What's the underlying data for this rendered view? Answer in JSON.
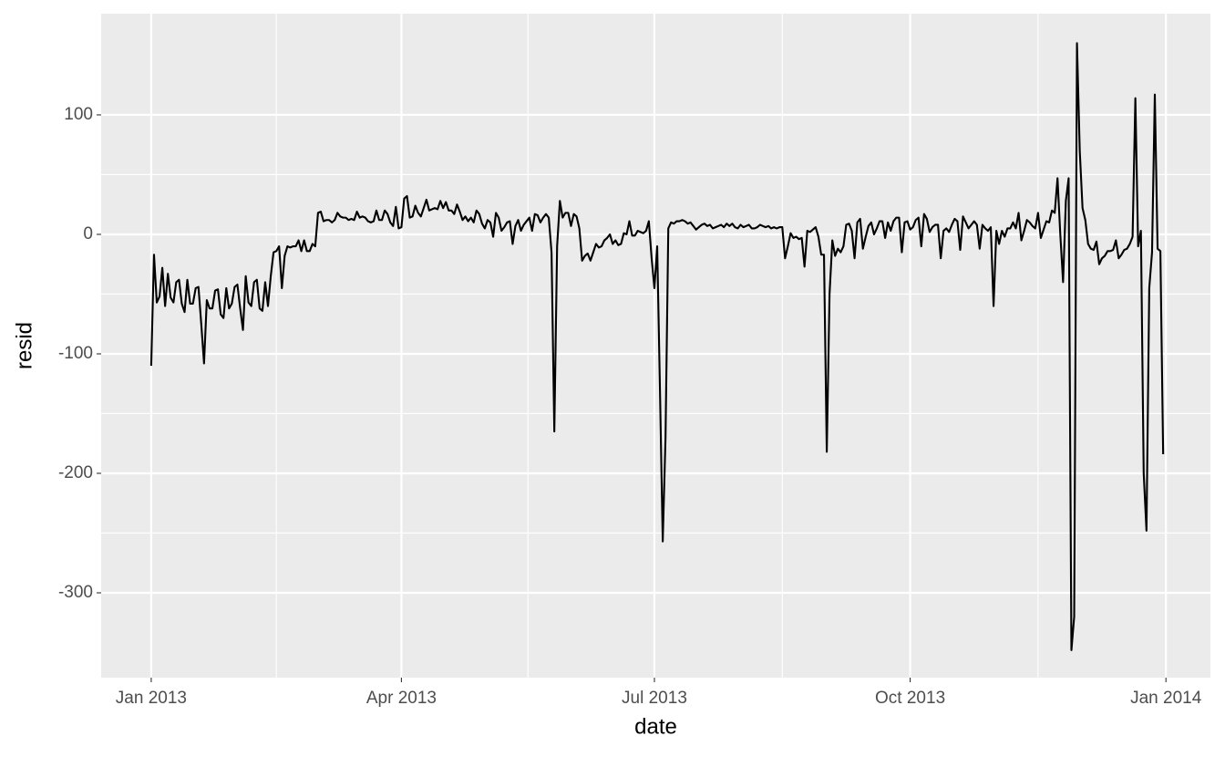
{
  "chart_data": {
    "type": "line",
    "x_label": "date",
    "y_label": "resid",
    "x": [
      0,
      1,
      2,
      3,
      4,
      5,
      6,
      7,
      8,
      9,
      10,
      11,
      12,
      13,
      14,
      15,
      16,
      17,
      18,
      19,
      20,
      21,
      22,
      23,
      24,
      25,
      26,
      27,
      28,
      29,
      30,
      31,
      32,
      33,
      34,
      35,
      36,
      37,
      38,
      39,
      40,
      41,
      42,
      43,
      44,
      45,
      46,
      47,
      48,
      49,
      50,
      51,
      52,
      53,
      54,
      55,
      56,
      57,
      58,
      59,
      60,
      61,
      62,
      63,
      64,
      65,
      66,
      67,
      68,
      69,
      70,
      71,
      72,
      73,
      74,
      75,
      76,
      77,
      78,
      79,
      80,
      81,
      82,
      83,
      84,
      85,
      86,
      87,
      88,
      89,
      90,
      91,
      92,
      93,
      94,
      95,
      96,
      97,
      98,
      99,
      100,
      101,
      102,
      103,
      104,
      105,
      106,
      107,
      108,
      109,
      110,
      111,
      112,
      113,
      114,
      115,
      116,
      117,
      118,
      119,
      120,
      121,
      122,
      123,
      124,
      125,
      126,
      127,
      128,
      129,
      130,
      131,
      132,
      133,
      134,
      135,
      136,
      137,
      138,
      139,
      140,
      141,
      142,
      143,
      144,
      145,
      146,
      147,
      148,
      149,
      150,
      151,
      152,
      153,
      154,
      155,
      156,
      157,
      158,
      159,
      160,
      161,
      162,
      163,
      164,
      165,
      166,
      167,
      168,
      169,
      170,
      171,
      172,
      173,
      174,
      175,
      176,
      177,
      178,
      179,
      180,
      181,
      182,
      183,
      184,
      185,
      186,
      187,
      188,
      189,
      190,
      191,
      192,
      193,
      194,
      195,
      196,
      197,
      198,
      199,
      200,
      201,
      202,
      203,
      204,
      205,
      206,
      207,
      208,
      209,
      210,
      211,
      212,
      213,
      214,
      215,
      216,
      217,
      218,
      219,
      220,
      221,
      222,
      223,
      224,
      225,
      226,
      227,
      228,
      229,
      230,
      231,
      232,
      233,
      234,
      235,
      236,
      237,
      238,
      239,
      240,
      241,
      242,
      243,
      244,
      245,
      246,
      247,
      248,
      249,
      250,
      251,
      252,
      253,
      254,
      255,
      256,
      257,
      258,
      259,
      260,
      261,
      262,
      263,
      264,
      265,
      266,
      267,
      268,
      269,
      270,
      271,
      272,
      273,
      274,
      275,
      276,
      277,
      278,
      279,
      280,
      281,
      282,
      283,
      284,
      285,
      286,
      287,
      288,
      289,
      290,
      291,
      292,
      293,
      294,
      295,
      296,
      297,
      298,
      299,
      300,
      301,
      302,
      303,
      304,
      305,
      306,
      307,
      308,
      309,
      310,
      311,
      312,
      313,
      314,
      315,
      316,
      317,
      318,
      319,
      320,
      321,
      322,
      323,
      324,
      325,
      326,
      327,
      328,
      329,
      330,
      331,
      332,
      333,
      334,
      335,
      336,
      337,
      338,
      339,
      340,
      341,
      342,
      343,
      344,
      345,
      346,
      347,
      348,
      349,
      350,
      351,
      352,
      353,
      354,
      355,
      356,
      357,
      358,
      359,
      360,
      361,
      362,
      363,
      364
    ],
    "series": [
      {
        "color": "#000000",
        "values": [
          -110,
          -17,
          -57,
          -52,
          -28,
          -60,
          -33,
          -53,
          -57,
          -40,
          -38,
          -58,
          -65,
          -38,
          -58,
          -58,
          -45,
          -44,
          -75,
          -108,
          -55,
          -62,
          -62,
          -47,
          -46,
          -67,
          -70,
          -45,
          -62,
          -58,
          -44,
          -42,
          -62,
          -80,
          -35,
          -57,
          -60,
          -40,
          -38,
          -62,
          -64,
          -40,
          -60,
          -35,
          -15,
          -14,
          -10,
          -45,
          -18,
          -10,
          -11,
          -10,
          -10,
          -5,
          -14,
          -5,
          -14,
          -14,
          -8,
          -10,
          18,
          19,
          11,
          12,
          12,
          10,
          12,
          18,
          15,
          14,
          14,
          12,
          13,
          12,
          19,
          14,
          15,
          14,
          11,
          10,
          11,
          20,
          12,
          12,
          20,
          17,
          10,
          7,
          23,
          5,
          6,
          30,
          32,
          14,
          15,
          24,
          18,
          15,
          22,
          29,
          20,
          21,
          22,
          21,
          28,
          22,
          27,
          20,
          20,
          17,
          25,
          19,
          12,
          15,
          11,
          14,
          10,
          20,
          17,
          9,
          5,
          12,
          10,
          -2,
          18,
          14,
          3,
          6,
          10,
          11,
          -8,
          7,
          12,
          3,
          8,
          11,
          14,
          3,
          17,
          16,
          10,
          14,
          17,
          14,
          -15,
          -165,
          -10,
          28,
          14,
          18,
          18,
          7,
          17,
          15,
          5,
          -22,
          -18,
          -16,
          -22,
          -15,
          -8,
          -11,
          -10,
          -5,
          -3,
          0,
          -8,
          -5,
          -9,
          -8,
          1,
          0,
          11,
          -1,
          -1,
          3,
          2,
          1,
          3,
          11,
          -20,
          -45,
          -10,
          -130,
          -257,
          -170,
          5,
          10,
          9,
          11,
          11,
          12,
          11,
          9,
          10,
          7,
          4,
          6,
          8,
          9,
          7,
          8,
          5,
          6,
          7,
          8,
          6,
          9,
          7,
          9,
          6,
          5,
          8,
          6,
          7,
          8,
          5,
          5,
          6,
          8,
          7,
          6,
          7,
          5,
          6,
          5,
          6,
          6,
          -20,
          -10,
          1,
          -3,
          -2,
          -4,
          -3,
          -27,
          3,
          2,
          4,
          6,
          -2,
          -17,
          -17,
          -182,
          -50,
          -5,
          -18,
          -12,
          -15,
          -10,
          8,
          9,
          3,
          -20,
          10,
          13,
          -12,
          -2,
          7,
          10,
          0,
          5,
          11,
          11,
          -3,
          10,
          3,
          11,
          14,
          14,
          -15,
          10,
          11,
          4,
          6,
          12,
          14,
          -10,
          17,
          13,
          2,
          6,
          8,
          8,
          -20,
          3,
          5,
          2,
          8,
          13,
          11,
          -13,
          15,
          10,
          5,
          8,
          11,
          8,
          -12,
          8,
          5,
          3,
          6,
          -60,
          3,
          -8,
          3,
          -2,
          5,
          5,
          10,
          5,
          18,
          -5,
          3,
          12,
          10,
          7,
          5,
          18,
          -3,
          4,
          11,
          10,
          20,
          18,
          47,
          0,
          -40,
          28,
          47,
          -348,
          -320,
          160,
          70,
          22,
          12,
          -8,
          -12,
          -13,
          -6,
          -25,
          -20,
          -18,
          -14,
          -14,
          -13,
          -5,
          -20,
          -17,
          -13,
          -12,
          -8,
          -2,
          114,
          -10,
          3,
          -200,
          -248,
          -45,
          -15,
          117,
          -12,
          -14,
          -184
        ]
      }
    ],
    "xlim": [
      -18,
      381
    ],
    "xticks": [
      {
        "value": 0,
        "label": "Jan 2013"
      },
      {
        "value": 90,
        "label": "Apr 2013"
      },
      {
        "value": 181,
        "label": "Jul 2013"
      },
      {
        "value": 273,
        "label": "Oct 2013"
      },
      {
        "value": 365,
        "label": "Jan 2014"
      }
    ],
    "ylim": [
      -371,
      184.7
    ],
    "yticks": [
      -300,
      -200,
      -100,
      0,
      100
    ],
    "grid": true,
    "panel_color": "#ebebeb"
  }
}
